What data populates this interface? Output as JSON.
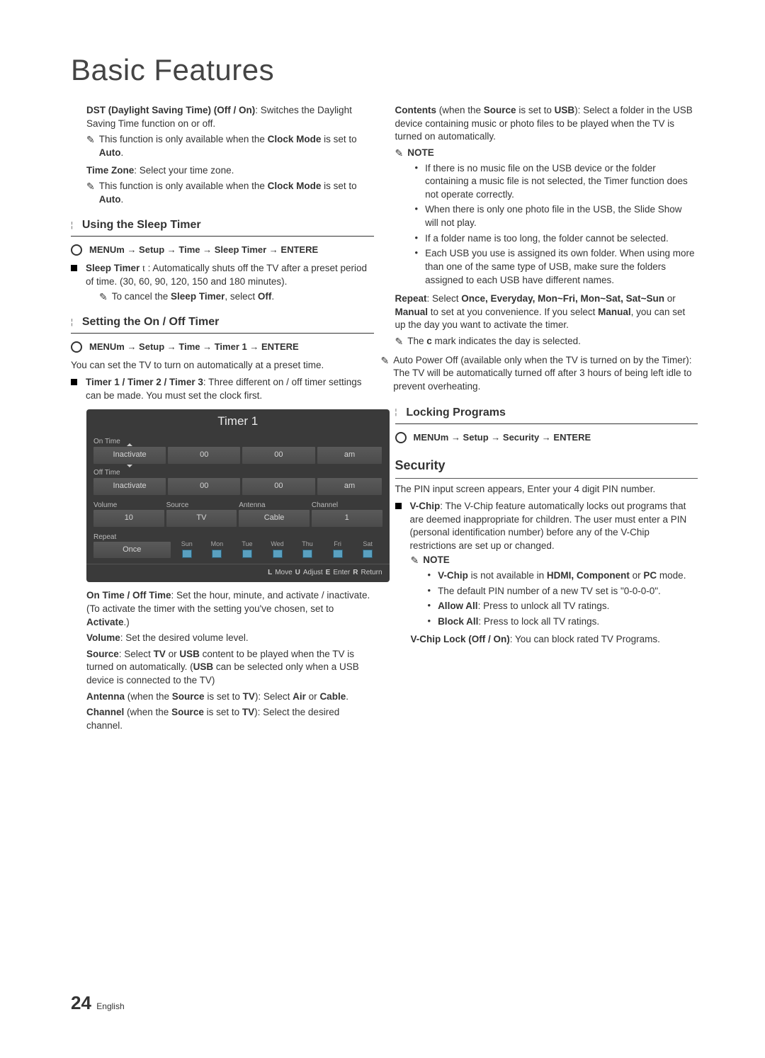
{
  "page_title": "Basic Features",
  "page_number": "24",
  "page_lang": "English",
  "left": {
    "dst_para": [
      {
        "b": true,
        "t": "DST (Daylight Saving Time) (Off / On)"
      },
      {
        "t": ": Switches the Daylight Saving Time function on or off."
      }
    ],
    "dst_note": [
      {
        "t": "This function is only available when the "
      },
      {
        "b": true,
        "t": "Clock Mode"
      },
      {
        "t": " is set to "
      },
      {
        "b": true,
        "t": "Auto"
      },
      {
        "t": "."
      }
    ],
    "tz_para": [
      {
        "b": true,
        "t": "Time Zone"
      },
      {
        "t": ": Select your time zone."
      }
    ],
    "tz_note": [
      {
        "t": "This function is only available when the "
      },
      {
        "b": true,
        "t": "Clock Mode"
      },
      {
        "t": " is set to "
      },
      {
        "b": true,
        "t": "Auto"
      },
      {
        "t": "."
      }
    ],
    "sleep_head": "Using the Sleep Timer",
    "sleep_path": "MENUm  → Setup → Time → Sleep Timer → ENTERE",
    "sleep_timer_para": [
      {
        "b": true,
        "t": "Sleep Timer"
      },
      {
        "t": " "
      },
      {
        "b": false,
        "t": "t",
        "serif": true
      },
      {
        "t": "           : Automatically shuts off the TV after a preset period of time. (30, 60, 90, 120, 150 and 180 minutes)."
      }
    ],
    "sleep_cancel": [
      {
        "t": "To cancel the "
      },
      {
        "b": true,
        "t": "Sleep Timer"
      },
      {
        "t": ", select "
      },
      {
        "b": true,
        "t": "Off"
      },
      {
        "t": "."
      }
    ],
    "onoff_head": "Setting the On / Off Timer",
    "onoff_path": "MENUm  → Setup → Time → Timer 1 → ENTERE",
    "onoff_intro": "You can set the TV to turn on automatically at a preset time.",
    "timer_desc": [
      {
        "b": true,
        "t": "Timer 1 / Timer 2 / Timer 3"
      },
      {
        "t": ": Three different on / off timer settings can be made. You must set the clock first."
      }
    ],
    "ontime_para": [
      {
        "b": true,
        "t": "On Time / Off Time"
      },
      {
        "t": ": Set the hour, minute, and activate / inactivate. (To activate the timer with the setting you've chosen, set to "
      },
      {
        "b": true,
        "t": "Activate"
      },
      {
        "t": ".)"
      }
    ],
    "volume_para": [
      {
        "b": true,
        "t": "Volume"
      },
      {
        "t": ": Set the desired volume level."
      }
    ],
    "source_para": [
      {
        "b": true,
        "t": "Source"
      },
      {
        "t": ": Select "
      },
      {
        "b": true,
        "t": "TV"
      },
      {
        "t": " or "
      },
      {
        "b": true,
        "t": "USB"
      },
      {
        "t": " content to be played when the TV is turned on automatically. ("
      },
      {
        "b": true,
        "t": "USB"
      },
      {
        "t": " can be selected only when a USB device is connected to the TV)"
      }
    ],
    "antenna_para": [
      {
        "b": true,
        "t": "Antenna"
      },
      {
        "t": " (when the "
      },
      {
        "b": true,
        "t": "Source"
      },
      {
        "t": " is set to "
      },
      {
        "b": true,
        "t": "TV"
      },
      {
        "t": "): Select "
      },
      {
        "b": true,
        "t": "Air"
      },
      {
        "t": " or "
      },
      {
        "b": true,
        "t": "Cable"
      },
      {
        "t": "."
      }
    ],
    "channel_para": [
      {
        "b": true,
        "t": "Channel"
      },
      {
        "t": " (when the "
      },
      {
        "b": true,
        "t": "Source"
      },
      {
        "t": " is set to "
      },
      {
        "b": true,
        "t": "TV"
      },
      {
        "t": "): Select the desired channel."
      }
    ]
  },
  "right": {
    "contents_para": [
      {
        "b": true,
        "t": "Contents"
      },
      {
        "t": " (when the "
      },
      {
        "b": true,
        "t": "Source"
      },
      {
        "t": " is set to "
      },
      {
        "b": true,
        "t": "USB"
      },
      {
        "t": "): Select a folder in the USB device containing music or photo files to be played when the TV is turned on automatically."
      }
    ],
    "note_label": "NOTE",
    "notes": [
      "If there is no music file on the USB device or the folder containing a music file is not selected, the Timer function does not operate correctly.",
      "When there is only one photo file in the USB, the Slide Show will not play.",
      "If a folder name is too long, the folder cannot be selected.",
      "Each USB you use is assigned its own folder. When using more than one of the same type of USB, make sure the folders assigned to each USB have different names."
    ],
    "repeat_para": [
      {
        "b": true,
        "t": "Repeat"
      },
      {
        "t": ": Select "
      },
      {
        "b": true,
        "t": "Once, Everyday, Mon~Fri, Mon~Sat, Sat~Sun"
      },
      {
        "t": " or "
      },
      {
        "b": true,
        "t": "Manual"
      },
      {
        "t": " to set at you convenience. If you select "
      },
      {
        "b": true,
        "t": "Manual"
      },
      {
        "t": ", you can set up the day you want to activate the timer."
      }
    ],
    "repeat_note": [
      {
        "t": "The "
      },
      {
        "b": true,
        "t": "c"
      },
      {
        "t": "   mark indicates the day is selected."
      }
    ],
    "autopower": "Auto Power Off (available only when the TV is turned on by the Timer): The TV will be automatically turned off after 3 hours of being left idle to prevent overheating.",
    "lock_head": "Locking Programs",
    "lock_path": "MENUm  → Setup → Security → ENTERE",
    "security_head": "Security",
    "pin_line": "The PIN input screen appears, Enter your 4 digit PIN number.",
    "vchip_para": [
      {
        "b": true,
        "t": "V-Chip"
      },
      {
        "t": ": The V-Chip feature automatically locks out programs that are deemed inappropriate for children. The user must enter a PIN (personal identification number) before any of the V-Chip restrictions are set up or changed."
      }
    ],
    "vchip_notes": [
      [
        {
          "b": true,
          "t": "V-Chip"
        },
        {
          "t": " is not available in "
        },
        {
          "b": true,
          "t": "HDMI, Component"
        },
        {
          "t": " or "
        },
        {
          "b": true,
          "t": "PC"
        },
        {
          "t": " mode."
        }
      ],
      [
        {
          "t": "The default PIN number of a new TV set is \"0-0-0-0\"."
        }
      ],
      [
        {
          "b": true,
          "t": "Allow All"
        },
        {
          "t": ": Press to unlock all TV ratings."
        }
      ],
      [
        {
          "b": true,
          "t": "Block All"
        },
        {
          "t": ": Press to lock all TV ratings."
        }
      ]
    ],
    "vchip_lock": [
      {
        "b": true,
        "t": "V-Chip Lock (Off / On)"
      },
      {
        "t": ": You can block rated TV Programs."
      }
    ]
  },
  "timer_panel": {
    "title": "Timer 1",
    "on_time_label": "On Time",
    "off_time_label": "Off Time",
    "inactivate": "Inactivate",
    "zero": "00",
    "am": "am",
    "volume_label": "Volume",
    "volume_val": "10",
    "source_label": "Source",
    "source_val": "TV",
    "antenna_label": "Antenna",
    "antenna_val": "Cable",
    "channel_label": "Channel",
    "channel_val": "1",
    "repeat_label": "Repeat",
    "repeat_val": "Once",
    "days": [
      "Sun",
      "Mon",
      "Tue",
      "Wed",
      "Thu",
      "Fri",
      "Sat"
    ],
    "footer": [
      "L",
      "Move",
      "U",
      "Adjust",
      "E",
      "Enter",
      "R",
      "Return"
    ]
  }
}
